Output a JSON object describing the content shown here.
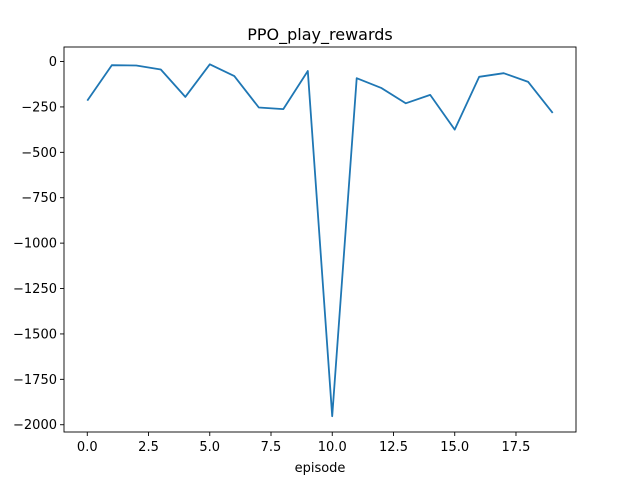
{
  "chart_data": {
    "type": "line",
    "title": "PPO_play_rewards",
    "xlabel": "episode",
    "ylabel": "",
    "xlim": [
      -0.95,
      19.95
    ],
    "ylim": [
      -2040,
      80
    ],
    "xticks": [
      0.0,
      2.5,
      5.0,
      7.5,
      10.0,
      12.5,
      15.0,
      17.5
    ],
    "xtick_labels": [
      "0.0",
      "2.5",
      "5.0",
      "7.5",
      "10.0",
      "12.5",
      "15.0",
      "17.5"
    ],
    "yticks": [
      0,
      -250,
      -500,
      -750,
      -1000,
      -1250,
      -1500,
      -1750,
      -2000
    ],
    "ytick_labels": [
      "0",
      "−250",
      "−500",
      "−750",
      "−1000",
      "−1250",
      "−1500",
      "−1750",
      "−2000"
    ],
    "grid": false,
    "series": [
      {
        "color": "#1f77b4",
        "x": [
          0,
          1,
          2,
          3,
          4,
          5,
          6,
          7,
          8,
          9,
          10,
          11,
          12,
          13,
          14,
          15,
          16,
          17,
          18,
          19
        ],
        "y": [
          -215,
          -20,
          -22,
          -44,
          -195,
          -15,
          -80,
          -253,
          -262,
          -52,
          -1953,
          -92,
          -145,
          -230,
          -184,
          -375,
          -84,
          -64,
          -112,
          -283
        ]
      }
    ]
  }
}
